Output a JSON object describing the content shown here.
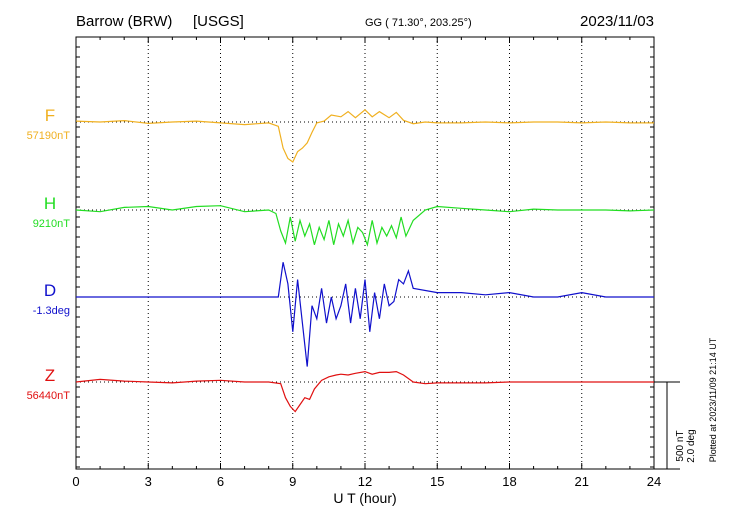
{
  "header": {
    "station": "Barrow (BRW)",
    "source": "[USGS]",
    "coords": "GG ( 71.30°, 203.25°)",
    "date": "2023/11/03"
  },
  "footer": {
    "xlabel": "U T (hour)",
    "plotted": "Plotted at 2023/11/09 21:14 UT"
  },
  "scale": {
    "nt_label": "500 nT",
    "deg_label": "2.0 deg"
  },
  "chart_data": {
    "type": "line",
    "title": "Barrow (BRW)  [USGS]",
    "xlabel": "U T (hour)",
    "ylabel": "",
    "xlim": [
      0,
      24
    ],
    "xticks": [
      0,
      3,
      6,
      9,
      12,
      15,
      18,
      21,
      24
    ],
    "grid": true,
    "series": [
      {
        "name": "F",
        "baseline_label": "57190nT",
        "unit": "nT",
        "baseline": 57190,
        "color": "#f0b020",
        "x": [
          0,
          1,
          2,
          3,
          4,
          5,
          6,
          7,
          8,
          8.4,
          8.6,
          8.8,
          9.0,
          9.2,
          9.4,
          9.6,
          9.8,
          10.0,
          10.3,
          10.6,
          11.0,
          11.3,
          11.6,
          12.0,
          12.3,
          12.6,
          13.0,
          13.3,
          13.6,
          14.0,
          14.5,
          15,
          16,
          17,
          18,
          19,
          20,
          21,
          22,
          23,
          24
        ],
        "y": [
          5,
          0,
          8,
          -8,
          0,
          5,
          -5,
          -15,
          -5,
          -25,
          -150,
          -210,
          -230,
          -170,
          -150,
          -120,
          -60,
          -5,
          5,
          40,
          30,
          60,
          25,
          70,
          30,
          60,
          25,
          55,
          10,
          -10,
          0,
          -5,
          -5,
          0,
          -5,
          0,
          0,
          -5,
          0,
          -5,
          -5
        ]
      },
      {
        "name": "H",
        "baseline_label": "9210nT",
        "unit": "nT",
        "baseline": 9210,
        "color": "#22dd22",
        "x": [
          0,
          1,
          2,
          3,
          4,
          5,
          6,
          7,
          8,
          8.3,
          8.5,
          8.7,
          8.9,
          9.1,
          9.3,
          9.5,
          9.7,
          9.9,
          10.1,
          10.3,
          10.5,
          10.7,
          10.9,
          11.1,
          11.3,
          11.5,
          11.7,
          11.9,
          12.1,
          12.3,
          12.5,
          12.7,
          12.9,
          13.1,
          13.3,
          13.5,
          13.7,
          14.0,
          14.5,
          15,
          16,
          17,
          18,
          19,
          20,
          21,
          22,
          23,
          24
        ],
        "y": [
          0,
          -10,
          15,
          20,
          0,
          20,
          25,
          -10,
          0,
          -20,
          -120,
          -190,
          -40,
          -180,
          -60,
          -150,
          -80,
          -200,
          -100,
          -170,
          -60,
          -200,
          -80,
          -150,
          -60,
          -190,
          -100,
          -130,
          -200,
          -60,
          -190,
          -100,
          -150,
          -90,
          -160,
          -40,
          -150,
          -60,
          0,
          20,
          10,
          0,
          -10,
          5,
          0,
          0,
          0,
          -5,
          0
        ]
      },
      {
        "name": "D",
        "baseline_label": "-1.3deg",
        "unit": "deg",
        "baseline": -1.3,
        "color": "#1010cc",
        "x": [
          0,
          1,
          2,
          3,
          4,
          5,
          6,
          7,
          8,
          8.4,
          8.6,
          8.8,
          9.0,
          9.2,
          9.4,
          9.6,
          9.8,
          10.0,
          10.2,
          10.4,
          10.6,
          10.8,
          11.0,
          11.2,
          11.4,
          11.6,
          11.8,
          12.0,
          12.2,
          12.4,
          12.6,
          12.8,
          13.0,
          13.2,
          13.4,
          13.6,
          13.8,
          14.0,
          15,
          16,
          17,
          18,
          19,
          20,
          21,
          22,
          23,
          24
        ],
        "y": [
          0,
          0,
          0,
          0,
          0,
          0,
          0,
          0,
          0,
          0,
          0.8,
          0.3,
          -0.8,
          0.4,
          -0.6,
          -1.6,
          -0.2,
          -0.5,
          0.2,
          -0.6,
          0,
          -0.5,
          -0.2,
          0.3,
          -0.6,
          0.2,
          -0.5,
          0.4,
          -0.8,
          0.1,
          -0.5,
          0.3,
          -0.2,
          -0.1,
          0.4,
          0.3,
          0.6,
          0.2,
          0.1,
          0.1,
          0.05,
          0.1,
          0,
          0,
          0.1,
          0,
          0,
          0
        ]
      },
      {
        "name": "Z",
        "baseline_label": "56440nT",
        "unit": "nT",
        "baseline": 56440,
        "color": "#e01010",
        "x": [
          0,
          1,
          2,
          3,
          4,
          5,
          6,
          7,
          8,
          8.5,
          8.7,
          8.9,
          9.1,
          9.3,
          9.5,
          9.7,
          9.9,
          10.2,
          10.5,
          10.8,
          11.0,
          11.3,
          11.6,
          12.0,
          12.3,
          12.6,
          13.0,
          13.3,
          13.6,
          14.0,
          14.5,
          15,
          16,
          17,
          18,
          19,
          20,
          21,
          22,
          23,
          24
        ],
        "y": [
          0,
          15,
          5,
          0,
          -5,
          5,
          10,
          0,
          0,
          -10,
          -90,
          -140,
          -170,
          -130,
          -90,
          -100,
          -40,
          10,
          30,
          40,
          45,
          40,
          50,
          60,
          45,
          55,
          55,
          60,
          40,
          0,
          -10,
          -5,
          -5,
          -5,
          0,
          0,
          0,
          0,
          0,
          0,
          0
        ]
      }
    ]
  }
}
